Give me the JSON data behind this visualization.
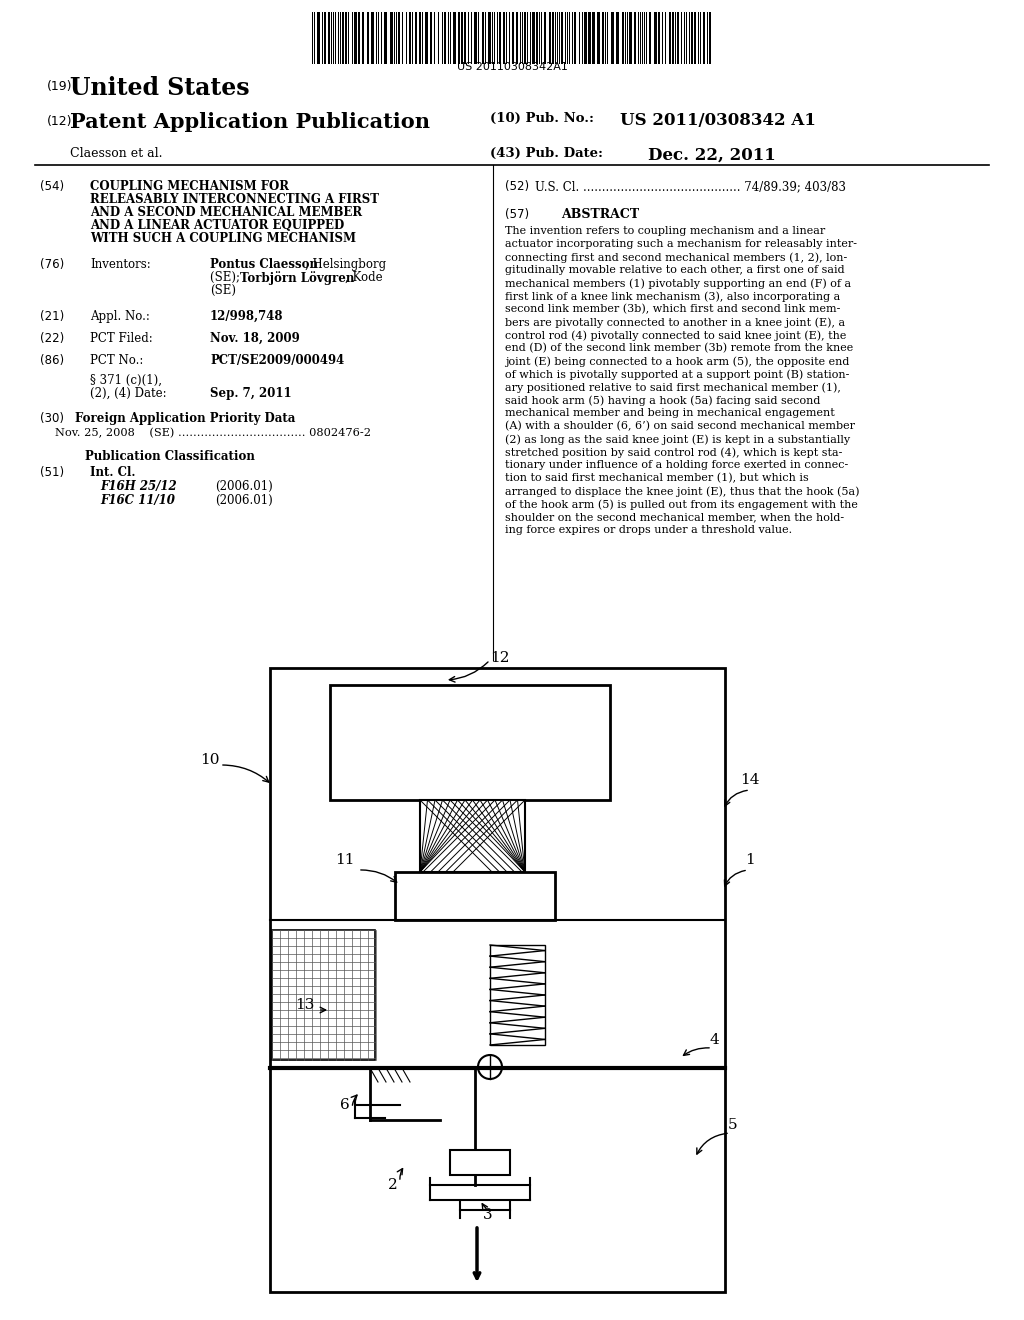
{
  "background_color": "#ffffff",
  "barcode_text": "US 20110308342A1",
  "header_19": "(19)",
  "header_country": "United States",
  "header_12": "(12)",
  "header_type": "Patent Application Publication",
  "header_10_a": "(10) Pub. No.:",
  "header_10_b": "US 2011/0308342 A1",
  "header_assignee": "Claesson et al.",
  "header_43_a": "(43) Pub. Date:",
  "header_43_b": "Dec. 22, 2011",
  "field54_label": "(54)",
  "field54_lines": [
    "COUPLING MECHANISM FOR",
    "RELEASABLY INTERCONNECTING A FIRST",
    "AND A SECOND MECHANICAL MEMBER",
    "AND A LINEAR ACTUATOR EQUIPPED",
    "WITH SUCH A COUPLING MECHANISM"
  ],
  "field52_label": "(52)",
  "field52_value": "U.S. Cl. .......................................... 74/89.39; 403/83",
  "field57_label": "(57)",
  "field57_abstract_title": "ABSTRACT",
  "abstract_lines": [
    "The invention refers to coupling mechanism and a linear",
    "actuator incorporating such a mechanism for releasably inter-",
    "connecting first and second mechanical members (1, 2), lon-",
    "gitudinally movable relative to each other, a first one of said",
    "mechanical members (1) pivotably supporting an end (F) of a",
    "first link of a knee link mechanism (3), also incorporating a",
    "second link member (3b), which first and second link mem-",
    "bers are pivotally connected to another in a knee joint (E), a",
    "control rod (4) pivotally connected to said knee joint (E), the",
    "end (D) of the second link member (3b) remote from the knee",
    "joint (E) being connected to a hook arm (5), the opposite end",
    "of which is pivotally supported at a support point (B) station-",
    "ary positioned relative to said first mechanical member (1),",
    "said hook arm (5) having a hook (5a) facing said second",
    "mechanical member and being in mechanical engagement",
    "(A) with a shoulder (6, 6’) on said second mechanical member",
    "(2) as long as the said knee joint (E) is kept in a substantially",
    "stretched position by said control rod (4), which is kept sta-",
    "tionary under influence of a holding force exerted in connec-",
    "tion to said first mechanical member (1), but which is",
    "arranged to displace the knee joint (E), thus that the hook (5a)",
    "of the hook arm (5) is pulled out from its engagement with the",
    "shoulder on the second mechanical member, when the hold-",
    "ing force expires or drops under a threshold value."
  ],
  "field76_label": "(76)",
  "field76_title": "Inventors:",
  "field76_line1": "Pontus Claesson, Helsingborg",
  "field76_line1_bold": "Pontus Claesson",
  "field76_line2": "(SE); Torbjörn Lövgren, Kode",
  "field76_line2_bold": "Torbjörn Lövgren",
  "field76_line3": "(SE)",
  "field21_label": "(21)",
  "field21_title": "Appl. No.:",
  "field21_value": "12/998,748",
  "field22_label": "(22)",
  "field22_title": "PCT Filed:",
  "field22_value": "Nov. 18, 2009",
  "field86_label": "(86)",
  "field86_title": "PCT No.:",
  "field86_value": "PCT/SE2009/000494",
  "field86b_line1": "§ 371 (c)(1),",
  "field86b_line2": "(2), (4) Date:",
  "field86b_value": "Sep. 7, 2011",
  "field30_label": "(30)",
  "field30_title": "Foreign Application Priority Data",
  "field30_value": "Nov. 25, 2008    (SE) .................................. 0802476-2",
  "pub_class_title": "Publication Classification",
  "field51_label": "(51)",
  "field51_title": "Int. Cl.",
  "field51_value1": "F16H 25/12",
  "field51_date1": "(2006.01)",
  "field51_value2": "F16C 11/10",
  "field51_date2": "(2006.01)"
}
